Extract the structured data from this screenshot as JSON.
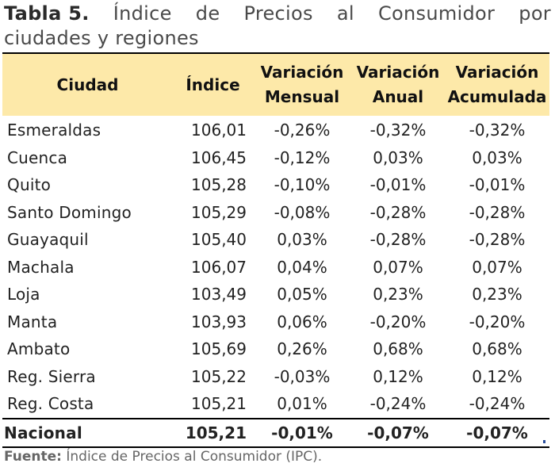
{
  "caption": {
    "label": "Tabla 5.",
    "title_line1_words": [
      "Índice",
      "de",
      "Precios",
      "al",
      "Consumidor",
      "por"
    ],
    "title_line2": "ciudades y regiones"
  },
  "table": {
    "headers": {
      "ciudad": "Ciudad",
      "indice": "Índice",
      "mensual": [
        "Variación",
        "Mensual"
      ],
      "anual": [
        "Variación",
        "Anual"
      ],
      "acumulada": [
        "Variación",
        "Acumulada"
      ]
    },
    "rows": [
      {
        "ciudad": "Esmeraldas",
        "indice": "106,01",
        "mensual": "-0,26%",
        "anual": "-0,32%",
        "acumulada": "-0,32%"
      },
      {
        "ciudad": "Cuenca",
        "indice": "106,45",
        "mensual": "-0,12%",
        "anual": "0,03%",
        "acumulada": "0,03%"
      },
      {
        "ciudad": "Quito",
        "indice": "105,28",
        "mensual": "-0,10%",
        "anual": "-0,01%",
        "acumulada": "-0,01%"
      },
      {
        "ciudad": "Santo Domingo",
        "indice": "105,29",
        "mensual": "-0,08%",
        "anual": "-0,28%",
        "acumulada": "-0,28%"
      },
      {
        "ciudad": "Guayaquil",
        "indice": "105,40",
        "mensual": "0,03%",
        "anual": "-0,28%",
        "acumulada": "-0,28%"
      },
      {
        "ciudad": "Machala",
        "indice": "106,07",
        "mensual": "0,04%",
        "anual": "0,07%",
        "acumulada": "0,07%"
      },
      {
        "ciudad": "Loja",
        "indice": "103,49",
        "mensual": "0,05%",
        "anual": "0,23%",
        "acumulada": "0,23%"
      },
      {
        "ciudad": "Manta",
        "indice": "103,93",
        "mensual": "0,06%",
        "anual": "-0,20%",
        "acumulada": "-0,20%"
      },
      {
        "ciudad": "Ambato",
        "indice": "105,69",
        "mensual": "0,26%",
        "anual": "0,68%",
        "acumulada": "0,68%"
      },
      {
        "ciudad": "Reg. Sierra",
        "indice": "105,22",
        "mensual": "-0,03%",
        "anual": "0,12%",
        "acumulada": "0,12%"
      },
      {
        "ciudad": "Reg. Costa",
        "indice": "105,21",
        "mensual": "0,01%",
        "anual": "-0,24%",
        "acumulada": "-0,24%"
      }
    ],
    "total": {
      "ciudad": "Nacional",
      "indice": "105,21",
      "mensual": "-0,01%",
      "anual": "-0,07%",
      "acumulada": "-0,07%"
    }
  },
  "source": {
    "label": "Fuente:",
    "text": "Índice de Precios al Consumidor (IPC)."
  },
  "colors": {
    "header_bg": "#fde9a9",
    "corner_mark": "#2b4f9c"
  }
}
